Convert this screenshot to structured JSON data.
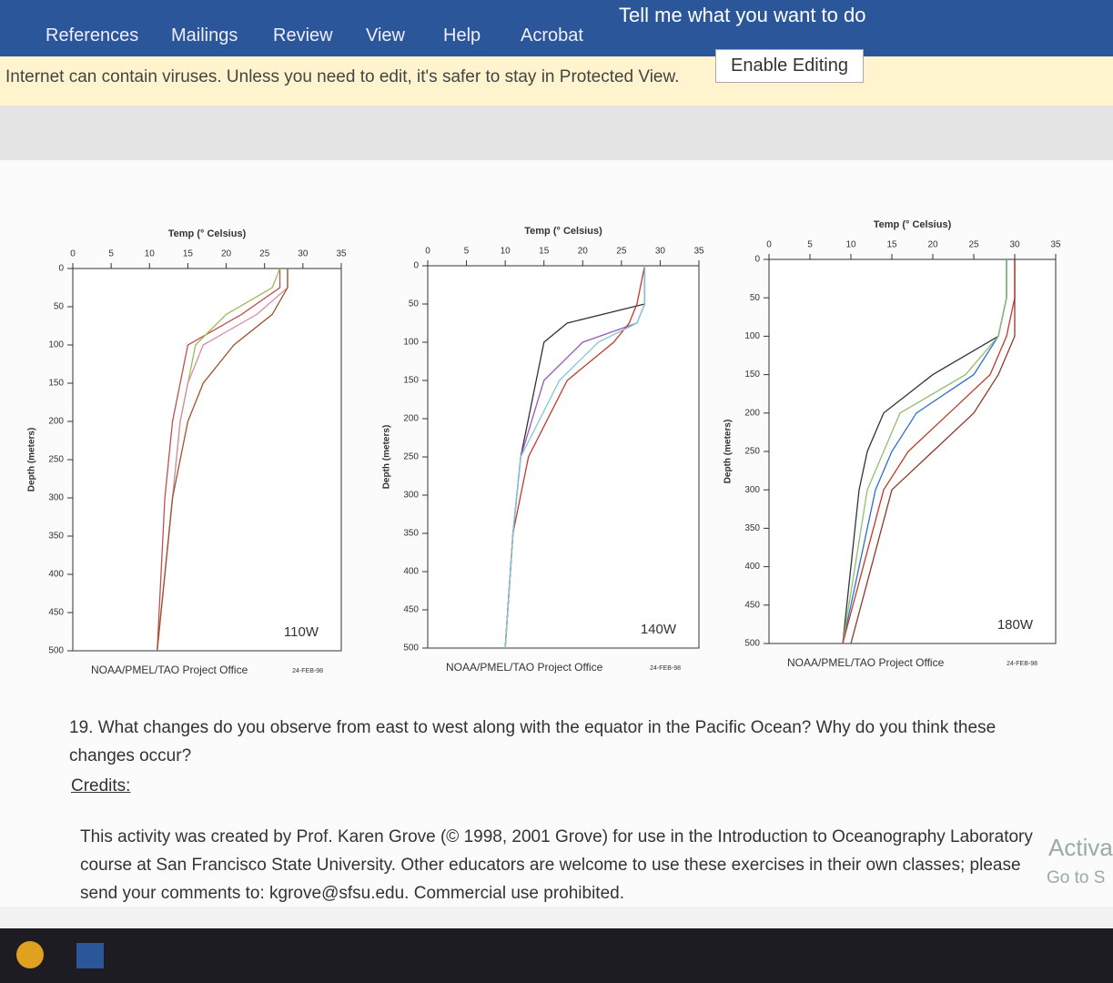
{
  "ribbon": {
    "tabs": [
      "References",
      "Mailings",
      "Review",
      "View",
      "Help",
      "Acrobat"
    ],
    "search": "Tell me what you want to do"
  },
  "protected_view": {
    "message": "Internet can contain viruses. Unless you need to edit, it's safer to stay in Protected View.",
    "button": "Enable Editing"
  },
  "chart_data": [
    {
      "type": "line",
      "title": "Temp (° Celsius)",
      "y_label": "Depth (meters)",
      "annotation": "110W",
      "footer": "NOAA/PMEL/TAO Project Office",
      "date": "24-FEB-98",
      "xlim": [
        0,
        35
      ],
      "xticks": [
        0,
        5,
        10,
        15,
        20,
        25,
        30,
        35
      ],
      "ylim": [
        0,
        500
      ],
      "yticks": [
        0,
        50,
        100,
        150,
        200,
        250,
        300,
        350,
        400,
        450,
        500
      ],
      "series": [
        {
          "color": "#c0504d",
          "x": [
            27,
            27,
            22,
            15,
            14,
            13,
            12,
            11.5,
            11
          ],
          "values": [
            0,
            25,
            60,
            100,
            150,
            200,
            300,
            400,
            500
          ]
        },
        {
          "color": "#9bbb59",
          "x": [
            27,
            26,
            20,
            16,
            15,
            14,
            13,
            12,
            11
          ],
          "values": [
            0,
            25,
            60,
            100,
            150,
            200,
            300,
            400,
            500
          ]
        },
        {
          "color": "#d98ca6",
          "x": [
            28,
            28,
            24,
            17,
            15,
            14,
            13,
            12,
            11
          ],
          "values": [
            0,
            25,
            60,
            100,
            150,
            200,
            300,
            400,
            500
          ]
        },
        {
          "color": "#a0522d",
          "x": [
            28,
            28,
            26,
            21,
            17,
            15,
            13,
            12,
            11
          ],
          "values": [
            0,
            25,
            60,
            100,
            150,
            200,
            300,
            400,
            500
          ]
        }
      ]
    },
    {
      "type": "line",
      "title": "Temp (° Celsius)",
      "y_label": "Depth (meters)",
      "annotation": "140W",
      "footer": "NOAA/PMEL/TAO Project Office",
      "date": "24-FEB-98",
      "xlim": [
        0,
        35
      ],
      "xticks": [
        0,
        5,
        10,
        15,
        20,
        25,
        30,
        35
      ],
      "ylim": [
        0,
        500
      ],
      "yticks": [
        0,
        50,
        100,
        150,
        200,
        250,
        300,
        350,
        400,
        450,
        500
      ],
      "series": [
        {
          "color": "#333333",
          "x": [
            28,
            28,
            18,
            15,
            14,
            12,
            11,
            10
          ],
          "values": [
            0,
            50,
            75,
            100,
            150,
            250,
            350,
            500
          ]
        },
        {
          "color": "#9b59b6",
          "x": [
            28,
            28,
            27,
            20,
            15,
            12,
            11,
            10
          ],
          "values": [
            0,
            50,
            75,
            100,
            150,
            250,
            350,
            500
          ]
        },
        {
          "color": "#c0392b",
          "x": [
            28,
            27,
            26,
            24,
            18,
            13,
            11,
            10
          ],
          "values": [
            0,
            50,
            75,
            100,
            150,
            250,
            350,
            500
          ]
        },
        {
          "color": "#7fc8d6",
          "x": [
            28,
            28,
            27,
            22,
            17,
            12,
            11,
            10
          ],
          "values": [
            0,
            50,
            75,
            100,
            150,
            250,
            350,
            500
          ]
        }
      ]
    },
    {
      "type": "line",
      "title": "Temp (° Celsius)",
      "y_label": "Depth (meters)",
      "annotation": "180W",
      "footer": "NOAA/PMEL/TAO Project Office",
      "date": "24-FEB-98",
      "xlim": [
        0,
        35
      ],
      "xticks": [
        0,
        5,
        10,
        15,
        20,
        25,
        30,
        35
      ],
      "ylim": [
        0,
        500
      ],
      "yticks": [
        0,
        50,
        100,
        150,
        200,
        250,
        300,
        350,
        400,
        450,
        500
      ],
      "series": [
        {
          "color": "#333333",
          "x": [
            29,
            29,
            28,
            20,
            14,
            12,
            11,
            9
          ],
          "values": [
            0,
            50,
            100,
            150,
            200,
            250,
            300,
            500
          ]
        },
        {
          "color": "#2e6fd0",
          "x": [
            29,
            29,
            28,
            25,
            18,
            15,
            13,
            9
          ],
          "values": [
            0,
            50,
            100,
            150,
            200,
            250,
            300,
            500
          ]
        },
        {
          "color": "#8fbf6f",
          "x": [
            29,
            29,
            28,
            24,
            16,
            14,
            12,
            9
          ],
          "values": [
            0,
            50,
            100,
            150,
            200,
            250,
            300,
            500
          ]
        },
        {
          "color": "#c0392b",
          "x": [
            30,
            30,
            29,
            27,
            22,
            17,
            14,
            9
          ],
          "values": [
            0,
            50,
            100,
            150,
            200,
            250,
            300,
            500
          ]
        },
        {
          "color": "#8b3a2a",
          "x": [
            30,
            30,
            30,
            28,
            25,
            20,
            15,
            10
          ],
          "values": [
            0,
            50,
            100,
            150,
            200,
            250,
            300,
            500
          ]
        }
      ]
    }
  ],
  "document": {
    "question": "19. What changes do you observe from east to west along with the equator in the Pacific Ocean? Why do you think these changes occur?",
    "credits_heading": "Credits:",
    "credits": "This activity was created by Prof. Karen Grove (© 1998, 2001 Grove) for use in the Introduction to Oceanography Laboratory course at San Francisco State University. Other educators are welcome to use these exercises in their own classes; please send your comments to: kgrove@sfsu.edu. Commercial use prohibited.",
    "watermark": [
      "Activa",
      "Go to S"
    ]
  }
}
